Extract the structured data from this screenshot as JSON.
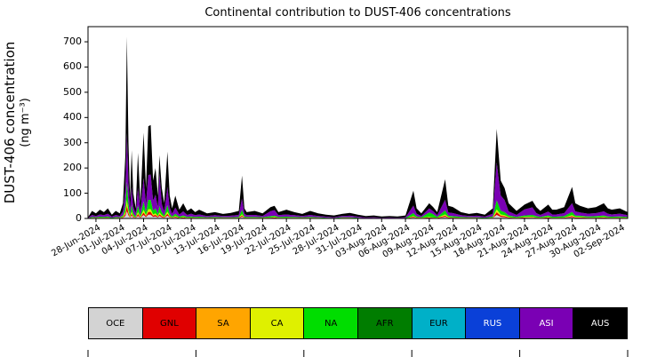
{
  "chart_data": {
    "type": "area",
    "stacked": true,
    "title": "Continental contribution to DUST-406 concentrations",
    "xlabel": "",
    "ylabel": "DUST-406 concentration (ng m⁻³)",
    "ylabel_lines": [
      "DUST-406 concentration",
      "(ng m⁻³)"
    ],
    "x_unit": "days since 27-Jun-2024",
    "xlim": [
      0,
      68
    ],
    "ylim": [
      0,
      760
    ],
    "grid": false,
    "legend_position": "bottom",
    "yticks": [
      0,
      100,
      200,
      300,
      400,
      500,
      600,
      700
    ],
    "xticks": {
      "days": [
        1,
        4,
        7,
        10,
        13,
        16,
        19,
        22,
        25,
        28,
        31,
        34,
        37,
        40,
        43,
        46,
        49,
        52,
        55,
        58,
        61,
        64,
        67
      ],
      "labels": [
        "28-Jun-2024",
        "01-Jul-2024",
        "04-Jul-2024",
        "07-Jul-2024",
        "10-Jul-2024",
        "13-Jul-2024",
        "16-Jul-2024",
        "19-Jul-2024",
        "22-Jul-2024",
        "25-Jul-2024",
        "28-Jul-2024",
        "31-Jul-2024",
        "03-Aug-2024",
        "06-Aug-2024",
        "09-Aug-2024",
        "12-Aug-2024",
        "15-Aug-2024",
        "18-Aug-2024",
        "21-Aug-2024",
        "24-Aug-2024",
        "27-Aug-2024",
        "30-Aug-2024",
        "02-Sep-2024"
      ]
    },
    "legend": [
      {
        "label": "OCE",
        "color": "#d3d3d3",
        "text_color": "#000000"
      },
      {
        "label": "GNL",
        "color": "#e00000",
        "text_color": "#000000"
      },
      {
        "label": "SA",
        "color": "#ffa500",
        "text_color": "#000000"
      },
      {
        "label": "CA",
        "color": "#dff000",
        "text_color": "#000000"
      },
      {
        "label": "NA",
        "color": "#00dd00",
        "text_color": "#000000"
      },
      {
        "label": "AFR",
        "color": "#007d00",
        "text_color": "#000000"
      },
      {
        "label": "EUR",
        "color": "#00b0c8",
        "text_color": "#000000"
      },
      {
        "label": "RUS",
        "color": "#0a40d8",
        "text_color": "#ffffff"
      },
      {
        "label": "ASI",
        "color": "#7a00b4",
        "text_color": "#ffffff"
      },
      {
        "label": "AUS",
        "color": "#000000",
        "text_color": "#ffffff"
      }
    ],
    "zero_series": [
      "SA",
      "AFR",
      "EUR",
      "RUS"
    ],
    "x": [
      0,
      0.5,
      1,
      1.5,
      2,
      2.5,
      3,
      3.5,
      4,
      4.4,
      4.7,
      4.9,
      5.1,
      5.3,
      5.5,
      5.7,
      6,
      6.3,
      6.6,
      7,
      7.3,
      7.6,
      7.9,
      8.2,
      8.5,
      8.8,
      9,
      9.3,
      9.6,
      10,
      10.3,
      10.6,
      11,
      11.5,
      12,
      12.5,
      13,
      13.5,
      14,
      15,
      16,
      17,
      18,
      19,
      19.4,
      19.7,
      20,
      21,
      22,
      23,
      23.5,
      24,
      25,
      25.5,
      26,
      27,
      28,
      29,
      30,
      31,
      32,
      33,
      34,
      35,
      36,
      37,
      38,
      39,
      40,
      41,
      41.4,
      42,
      43,
      43.5,
      44,
      45,
      45.4,
      46,
      47,
      48,
      49,
      50,
      51,
      51.5,
      52,
      52.5,
      53,
      53.5,
      54,
      55,
      56,
      56.5,
      57,
      58,
      58.5,
      59,
      60,
      61,
      61.4,
      62,
      63,
      64,
      65,
      65.5,
      66,
      67,
      68
    ],
    "series": [
      {
        "name": "OCE",
        "color": "#d3d3d3",
        "values": [
          0,
          1,
          1,
          1,
          1,
          2,
          1,
          1,
          1,
          2,
          10,
          29,
          12,
          3,
          11,
          4,
          2,
          10,
          2,
          14,
          5,
          15,
          15,
          6,
          8,
          4,
          10,
          5,
          2,
          11,
          4,
          2,
          4,
          1,
          2,
          1,
          2,
          1,
          1,
          1,
          1,
          1,
          1,
          1,
          7,
          2,
          1,
          1,
          1,
          2,
          2,
          1,
          1,
          1,
          1,
          1,
          1,
          1,
          1,
          0,
          1,
          1,
          1,
          0,
          0,
          0,
          0,
          0,
          0,
          4,
          2,
          1,
          2,
          2,
          1,
          6,
          2,
          2,
          1,
          1,
          1,
          1,
          2,
          14,
          6,
          5,
          2,
          2,
          1,
          2,
          3,
          2,
          1,
          2,
          1,
          1,
          2,
          5,
          2,
          2,
          2,
          2,
          2,
          2,
          1,
          2,
          1
        ]
      },
      {
        "name": "GNL",
        "color": "#e00000",
        "values": [
          0,
          1,
          1,
          1,
          1,
          1,
          0,
          1,
          1,
          2,
          8,
          22,
          9,
          2,
          8,
          3,
          1,
          8,
          2,
          10,
          4,
          11,
          11,
          5,
          6,
          3,
          7,
          4,
          2,
          8,
          3,
          1,
          3,
          1,
          2,
          1,
          1,
          1,
          1,
          1,
          1,
          1,
          1,
          1,
          5,
          1,
          1,
          1,
          1,
          1,
          2,
          1,
          1,
          1,
          1,
          1,
          1,
          1,
          0,
          0,
          1,
          1,
          0,
          0,
          0,
          0,
          0,
          0,
          0,
          3,
          1,
          1,
          2,
          1,
          1,
          5,
          2,
          1,
          1,
          1,
          1,
          0,
          1,
          11,
          5,
          4,
          2,
          1,
          1,
          2,
          2,
          1,
          1,
          2,
          1,
          1,
          1,
          4,
          2,
          2,
          1,
          1,
          2,
          1,
          1,
          1,
          1
        ]
      },
      {
        "name": "CA",
        "color": "#dff000",
        "values": [
          0,
          1,
          1,
          1,
          1,
          1,
          0,
          1,
          1,
          2,
          8,
          22,
          9,
          2,
          8,
          3,
          1,
          8,
          2,
          10,
          4,
          11,
          11,
          5,
          6,
          3,
          7,
          4,
          2,
          8,
          3,
          1,
          3,
          1,
          2,
          1,
          1,
          1,
          1,
          1,
          1,
          1,
          1,
          1,
          5,
          1,
          1,
          1,
          1,
          1,
          2,
          1,
          1,
          1,
          1,
          1,
          1,
          1,
          0,
          0,
          1,
          1,
          0,
          0,
          0,
          0,
          0,
          0,
          0,
          3,
          1,
          1,
          2,
          1,
          1,
          5,
          2,
          1,
          1,
          1,
          1,
          0,
          1,
          11,
          5,
          4,
          2,
          1,
          1,
          2,
          2,
          1,
          1,
          2,
          1,
          1,
          1,
          4,
          2,
          2,
          1,
          1,
          2,
          1,
          1,
          1,
          1
        ]
      },
      {
        "name": "NA",
        "color": "#00dd00",
        "values": [
          1,
          3,
          2,
          4,
          3,
          4,
          2,
          3,
          2,
          6,
          25,
          72,
          30,
          8,
          27,
          10,
          4,
          26,
          6,
          34,
          12,
          37,
          37,
          15,
          20,
          9,
          25,
          12,
          6,
          26,
          9,
          4,
          9,
          4,
          6,
          3,
          4,
          3,
          4,
          2,
          3,
          2,
          2,
          3,
          17,
          4,
          3,
          3,
          2,
          5,
          5,
          3,
          4,
          3,
          3,
          2,
          3,
          2,
          2,
          2,
          2,
          2,
          2,
          1,
          2,
          1,
          1,
          1,
          2,
          11,
          4,
          2,
          18,
          13,
          3,
          16,
          5,
          5,
          3,
          2,
          2,
          2,
          4,
          36,
          15,
          12,
          6,
          5,
          3,
          6,
          7,
          5,
          3,
          6,
          4,
          4,
          5,
          13,
          6,
          5,
          4,
          5,
          6,
          4,
          4,
          4,
          3
        ]
      },
      {
        "name": "ASI",
        "color": "#7a00b4",
        "values": [
          1,
          8,
          5,
          9,
          7,
          11,
          4,
          8,
          5,
          16,
          67,
          194,
          81,
          22,
          73,
          27,
          11,
          70,
          16,
          92,
          32,
          98,
          100,
          40,
          54,
          24,
          130,
          32,
          16,
          72,
          24,
          11,
          24,
          9,
          16,
          8,
          11,
          7,
          9,
          5,
          7,
          5,
          6,
          8,
          46,
          11,
          7,
          8,
          5,
          20,
          22,
          7,
          9,
          8,
          7,
          5,
          8,
          5,
          4,
          3,
          5,
          6,
          4,
          3,
          3,
          2,
          3,
          2,
          3,
          30,
          11,
          5,
          16,
          12,
          7,
          42,
          13,
          12,
          7,
          5,
          6,
          4,
          11,
          150,
          60,
          48,
          16,
          12,
          8,
          24,
          30,
          12,
          8,
          15,
          9,
          9,
          12,
          34,
          16,
          13,
          11,
          12,
          16,
          11,
          9,
          11,
          7
        ]
      },
      {
        "name": "AUS",
        "color": "#000000",
        "values": [
          3,
          16,
          10,
          19,
          12,
          21,
          8,
          16,
          10,
          32,
          132,
          381,
          159,
          43,
          143,
          53,
          21,
          138,
          32,
          180,
          63,
          193,
          196,
          79,
          106,
          47,
          71,
          63,
          32,
          140,
          47,
          21,
          47,
          19,
          32,
          16,
          21,
          12,
          19,
          10,
          12,
          8,
          11,
          16,
          90,
          21,
          12,
          16,
          10,
          16,
          17,
          12,
          19,
          16,
          12,
          8,
          16,
          10,
          8,
          7,
          8,
          11,
          8,
          6,
          7,
          5,
          6,
          5,
          7,
          59,
          21,
          10,
          20,
          16,
          12,
          81,
          26,
          24,
          12,
          8,
          11,
          8,
          21,
          133,
          59,
          47,
          32,
          24,
          16,
          19,
          26,
          24,
          16,
          28,
          19,
          19,
          24,
          65,
          32,
          26,
          21,
          24,
          32,
          21,
          19,
          21,
          12
        ]
      }
    ]
  }
}
